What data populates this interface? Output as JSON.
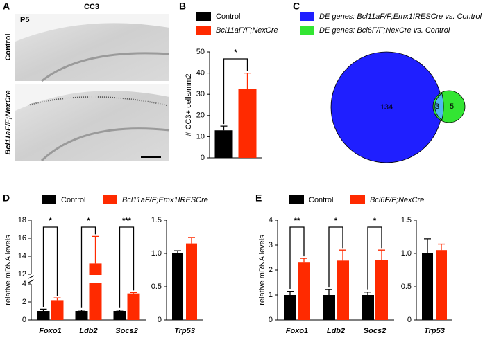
{
  "panel_a": {
    "panel": "A",
    "title": "CC3",
    "age": "P5",
    "rows": [
      "Control",
      "Bcl11aF/F;NexCre"
    ]
  },
  "chart_data": [
    {
      "type": "bar",
      "panel": "B",
      "ylabel": "# CC3+ cells/mm2",
      "categories": [
        null
      ],
      "series": [
        {
          "name": "Control",
          "color": "#000000",
          "values": [
            13
          ],
          "errors": [
            2
          ]
        },
        {
          "name": "Bcl11aF/F;NexCre",
          "color": "#ff2a00",
          "values": [
            32.5
          ],
          "errors": [
            7.5
          ]
        }
      ],
      "significance": [
        "*"
      ],
      "ylim": [
        0,
        50
      ],
      "yticks": [
        0,
        10,
        20,
        30,
        40,
        50
      ]
    },
    {
      "type": "bar",
      "panel": "D",
      "ylabel": "relative mRNA levels",
      "categories": [
        "Foxo1",
        "Ldb2",
        "Socs2"
      ],
      "series": [
        {
          "name": "Control",
          "color": "#000000",
          "values": [
            1.0,
            1.0,
            1.0
          ],
          "errors": [
            0.2,
            0.1,
            0.1
          ]
        },
        {
          "name": "Bcl11aF/F;Emx1IRESCre",
          "color": "#ff2a00",
          "values": [
            2.2,
            13.2,
            2.95
          ],
          "errors": [
            0.25,
            3.0,
            0.1
          ]
        }
      ],
      "significance": [
        "*",
        "*",
        "***"
      ],
      "ylim": [
        0,
        18
      ],
      "ybreak": [
        4,
        12
      ],
      "yticks": [
        0,
        2,
        4,
        12,
        14,
        16,
        18
      ]
    },
    {
      "type": "bar",
      "categories": [
        "Trp53"
      ],
      "series": [
        {
          "color": "#000000",
          "values": [
            1.0
          ],
          "errors": [
            0.04
          ]
        },
        {
          "color": "#ff2a00",
          "values": [
            1.15
          ],
          "errors": [
            0.09
          ]
        }
      ],
      "ylim": [
        0,
        1.5
      ],
      "yticks": [
        0,
        0.5,
        {
          "value": 1.0,
          "label": "1.0"
        },
        1.5
      ]
    },
    {
      "type": "bar",
      "panel": "E",
      "ylabel": "relative mRNA levels",
      "categories": [
        "Foxo1",
        "Ldb2",
        "Socs2"
      ],
      "series": [
        {
          "name": "Control",
          "color": "#000000",
          "values": [
            1.0,
            1.0,
            1.0
          ],
          "errors": [
            0.15,
            0.22,
            0.12
          ]
        },
        {
          "name": "Bcl6F/F;NexCre",
          "color": "#ff2a00",
          "values": [
            2.3,
            2.38,
            2.4
          ],
          "errors": [
            0.17,
            0.42,
            0.4
          ]
        }
      ],
      "significance": [
        "**",
        "*",
        "*"
      ],
      "ylim": [
        0,
        4
      ],
      "yticks": [
        0,
        1,
        2,
        3,
        4
      ]
    },
    {
      "type": "bar",
      "categories": [
        "Trp53"
      ],
      "series": [
        {
          "color": "#000000",
          "values": [
            1.0
          ],
          "errors": [
            0.22
          ]
        },
        {
          "color": "#ff2a00",
          "values": [
            1.05
          ],
          "errors": [
            0.09
          ]
        }
      ],
      "ylim": [
        0,
        1.5
      ],
      "yticks": [
        0,
        0.5,
        {
          "value": 1.0,
          "label": "1.0"
        },
        1.5
      ]
    },
    {
      "type": "venn",
      "panel": "C",
      "sets": [
        {
          "name": "DE genes: Bcl11aF/F;Emx1IRESCre vs. Control",
          "color": "#1f1fff"
        },
        {
          "name": "DE genes: Bcl6F/F;NexCre vs. Control",
          "color": "#33e533"
        }
      ],
      "counts": {
        "only_first": 134,
        "both": 3,
        "only_second": 5
      }
    }
  ]
}
